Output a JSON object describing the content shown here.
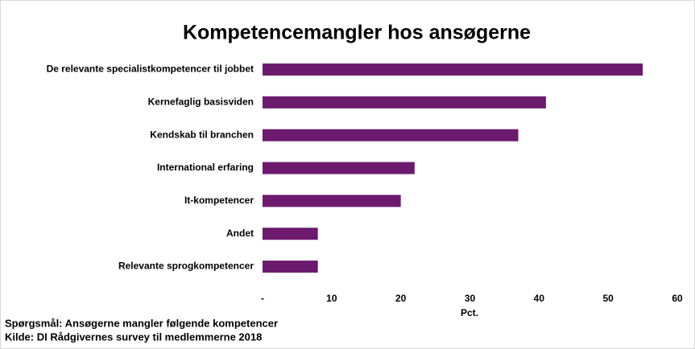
{
  "chart_data": {
    "type": "bar",
    "orientation": "horizontal",
    "title": "Kompetencemangler hos ansøgerne",
    "categories": [
      "De relevante specialistkompetencer til jobbet",
      "Kernefaglig basisviden",
      "Kendskab til branchen",
      "International erfaring",
      "It-kompetencer",
      "Andet",
      "Relevante sprogkompetencer"
    ],
    "values": [
      55,
      41,
      37,
      22,
      20,
      8,
      8
    ],
    "color": "#6b1a6e",
    "xlabel": "Pct.",
    "xlim": [
      0,
      60
    ],
    "xticks": [
      {
        "value": 0,
        "label": "-"
      },
      10,
      20,
      30,
      40,
      50,
      60
    ],
    "footnotes": [
      "Spørgsmål: Ansøgerne mangler følgende kompetencer",
      "Kilde: DI Rådgivernes survey til medlemmerne 2018"
    ]
  }
}
